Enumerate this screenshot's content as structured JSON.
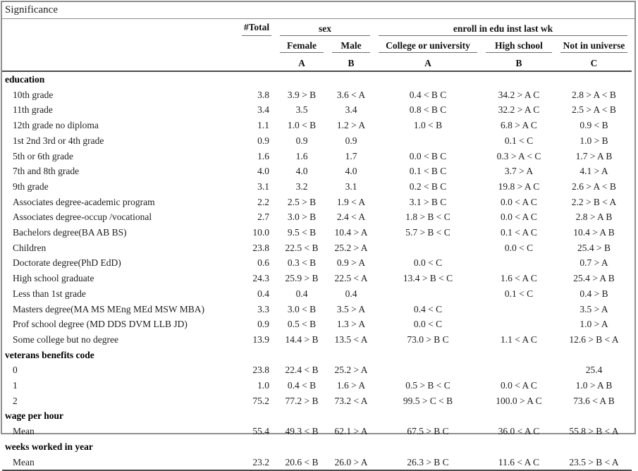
{
  "caption": "Significance",
  "columns": {
    "total": "#Total",
    "sex_group": "sex",
    "enroll_group": "enroll in edu inst last wk",
    "sub": [
      "Female",
      "Male",
      "College or university",
      "High school",
      "Not in universe"
    ],
    "letters": [
      "A",
      "B",
      "A",
      "B",
      "C"
    ]
  },
  "rows": [
    {
      "group": "education"
    },
    {
      "label": "10th grade",
      "cells": [
        "3.8",
        "3.9 > B",
        "3.6 < A",
        "0.4 < B C",
        "34.2 > A C",
        "2.8 > A < B"
      ]
    },
    {
      "label": "11th grade",
      "cells": [
        "3.4",
        "3.5",
        "3.4",
        "0.8 < B C",
        "32.2 > A C",
        "2.5 > A < B"
      ]
    },
    {
      "label": "12th grade no diploma",
      "cells": [
        "1.1",
        "1.0 < B",
        "1.2 > A",
        "1.0 < B",
        "6.8 > A C",
        "0.9 < B"
      ]
    },
    {
      "label": "1st 2nd 3rd or 4th grade",
      "cells": [
        "0.9",
        "0.9",
        "0.9",
        "",
        "0.1 < C",
        "1.0 > B"
      ]
    },
    {
      "label": "5th or 6th grade",
      "cells": [
        "1.6",
        "1.6",
        "1.7",
        "0.0 < B C",
        "0.3 > A < C",
        "1.7 > A B"
      ]
    },
    {
      "label": "7th and 8th grade",
      "cells": [
        "4.0",
        "4.0",
        "4.0",
        "0.1 < B C",
        "3.7 > A",
        "4.1 > A"
      ]
    },
    {
      "label": "9th grade",
      "cells": [
        "3.1",
        "3.2",
        "3.1",
        "0.2 < B C",
        "19.8 > A C",
        "2.6 > A < B"
      ]
    },
    {
      "label": "Associates degree-academic program",
      "cells": [
        "2.2",
        "2.5 > B",
        "1.9 < A",
        "3.1 > B C",
        "0.0 < A C",
        "2.2 > B < A"
      ]
    },
    {
      "label": "Associates degree-occup /vocational",
      "cells": [
        "2.7",
        "3.0 > B",
        "2.4 < A",
        "1.8 > B < C",
        "0.0 < A C",
        "2.8 > A B"
      ]
    },
    {
      "label": "Bachelors degree(BA AB BS)",
      "cells": [
        "10.0",
        "9.5 < B",
        "10.4 > A",
        "5.7 > B < C",
        "0.1 < A C",
        "10.4 > A B"
      ]
    },
    {
      "label": "Children",
      "cells": [
        "23.8",
        "22.5 < B",
        "25.2 > A",
        "",
        "0.0 < C",
        "25.4 > B"
      ]
    },
    {
      "label": "Doctorate degree(PhD EdD)",
      "cells": [
        "0.6",
        "0.3 < B",
        "0.9 > A",
        "0.0 < C",
        "",
        "0.7 > A"
      ]
    },
    {
      "label": "High school graduate",
      "cells": [
        "24.3",
        "25.9 > B",
        "22.5 < A",
        "13.4 > B < C",
        "1.6 < A C",
        "25.4 > A B"
      ]
    },
    {
      "label": "Less than 1st grade",
      "cells": [
        "0.4",
        "0.4",
        "0.4",
        "",
        "0.1 < C",
        "0.4 > B"
      ]
    },
    {
      "label": "Masters degree(MA MS MEng MEd MSW MBA)",
      "cells": [
        "3.3",
        "3.0 < B",
        "3.5 > A",
        "0.4 < C",
        "",
        "3.5 > A"
      ]
    },
    {
      "label": "Prof school degree (MD DDS DVM LLB JD)",
      "cells": [
        "0.9",
        "0.5 < B",
        "1.3 > A",
        "0.0 < C",
        "",
        "1.0 > A"
      ]
    },
    {
      "label": "Some college but no degree",
      "cells": [
        "13.9",
        "14.4 > B",
        "13.5 < A",
        "73.0 > B C",
        "1.1 < A C",
        "12.6 > B < A"
      ]
    },
    {
      "group": "veterans benefits code"
    },
    {
      "label": "0",
      "cells": [
        "23.8",
        "22.4 < B",
        "25.2 > A",
        "",
        "",
        "25.4"
      ]
    },
    {
      "label": "1",
      "cells": [
        "1.0",
        "0.4 < B",
        "1.6 > A",
        "0.5 > B < C",
        "0.0 < A C",
        "1.0 > A B"
      ]
    },
    {
      "label": "2",
      "cells": [
        "75.2",
        "77.2 > B",
        "73.2 < A",
        "99.5 > C < B",
        "100.0 > A C",
        "73.6 < A B"
      ]
    },
    {
      "group": "wage per hour"
    },
    {
      "label": "Mean",
      "cells": [
        "55.4",
        "49.3 < B",
        "62.1 > A",
        "67.5 > B C",
        "36.0 < A C",
        "55.8 > B < A"
      ]
    },
    {
      "group": "weeks worked in year"
    },
    {
      "label": "Mean",
      "cells": [
        "23.2",
        "20.6 < B",
        "26.0 > A",
        "26.3 > B C",
        "11.6 < A C",
        "23.5 > B < A"
      ]
    }
  ]
}
